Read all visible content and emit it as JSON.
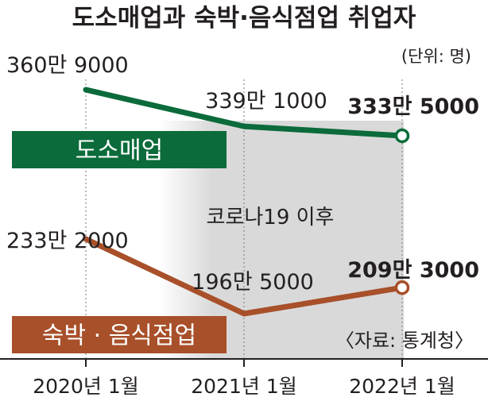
{
  "chart_data": {
    "type": "line",
    "title": "도소매업과 숙박·음식점업 취업자",
    "unit_note": "(단위: 명)",
    "categories": [
      "2020년 1월",
      "2021년 1월",
      "2022년 1월"
    ],
    "series": [
      {
        "name": "도소매업",
        "values": [
          3609000,
          3391000,
          3335000
        ],
        "labels": [
          {
            "main": "360만",
            "sub": "9000"
          },
          {
            "main": "339만",
            "sub": "1000"
          },
          {
            "main": "333만",
            "sub": "5000"
          }
        ],
        "color": "#0b6b3a"
      },
      {
        "name": "숙박 · 음식점업",
        "values": [
          2332000,
          1965000,
          2093000
        ],
        "labels": [
          {
            "main": "233만",
            "sub": "2000"
          },
          {
            "main": "196만",
            "sub": "5000"
          },
          {
            "main": "209만",
            "sub": "3000"
          }
        ],
        "color": "#a8502a"
      }
    ],
    "annotation": "코로나19 이후",
    "source": "〈자료: 통계청〉",
    "shaded_region": [
      "2021년 1월",
      "2022년 1월"
    ]
  }
}
